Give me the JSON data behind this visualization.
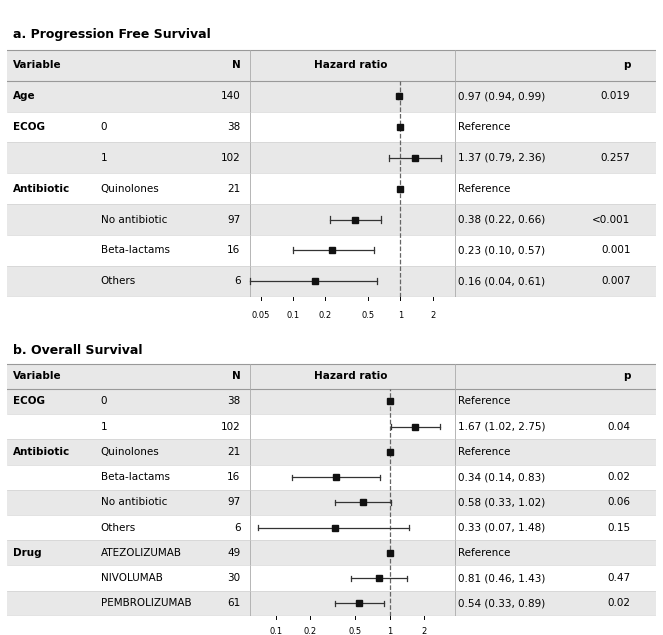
{
  "panel_a_title": "a. Progression Free Survival",
  "panel_b_title": "b. Overall Survival",
  "panel_a": {
    "header": [
      "Variable",
      "N",
      "Hazard ratio",
      "",
      "p"
    ],
    "rows": [
      {
        "var1": "Age",
        "var2": "",
        "n": "140",
        "hr": 0.97,
        "lo": 0.94,
        "hi": 0.99,
        "ci_text": "0.97 (0.94, 0.99)",
        "p_text": "0.019",
        "reference": false,
        "shade": true
      },
      {
        "var1": "ECOG",
        "var2": "0",
        "n": "38",
        "hr": 1.0,
        "lo": null,
        "hi": null,
        "ci_text": "Reference",
        "p_text": "",
        "reference": true,
        "shade": false
      },
      {
        "var1": "",
        "var2": "1",
        "n": "102",
        "hr": 1.37,
        "lo": 0.79,
        "hi": 2.36,
        "ci_text": "1.37 (0.79, 2.36)",
        "p_text": "0.257",
        "reference": false,
        "shade": true
      },
      {
        "var1": "Antibiotic",
        "var2": "Quinolones",
        "n": "21",
        "hr": 1.0,
        "lo": null,
        "hi": null,
        "ci_text": "Reference",
        "p_text": "",
        "reference": true,
        "shade": false
      },
      {
        "var1": "",
        "var2": "No antibiotic",
        "n": "97",
        "hr": 0.38,
        "lo": 0.22,
        "hi": 0.66,
        "ci_text": "0.38 (0.22, 0.66)",
        "p_text": "<0.001",
        "reference": false,
        "shade": true
      },
      {
        "var1": "",
        "var2": "Beta-lactams",
        "n": "16",
        "hr": 0.23,
        "lo": 0.1,
        "hi": 0.57,
        "ci_text": "0.23 (0.10, 0.57)",
        "p_text": "0.001",
        "reference": false,
        "shade": false
      },
      {
        "var1": "",
        "var2": "Others",
        "n": "6",
        "hr": 0.16,
        "lo": 0.04,
        "hi": 0.61,
        "ci_text": "0.16 (0.04, 0.61)",
        "p_text": "0.007",
        "reference": false,
        "shade": true
      }
    ],
    "xmin": 0.04,
    "xmax": 3.0,
    "xticks": [
      0.05,
      0.1,
      0.2,
      0.5,
      1,
      2
    ],
    "xticklabels": [
      "0.05",
      "0.1",
      "0.2",
      "0.5",
      "1",
      "2"
    ],
    "ref_line": 1.0
  },
  "panel_b": {
    "header": [
      "Variable",
      "N",
      "Hazard ratio",
      "",
      "p"
    ],
    "rows": [
      {
        "var1": "ECOG",
        "var2": "0",
        "n": "38",
        "hr": 1.0,
        "lo": null,
        "hi": null,
        "ci_text": "Reference",
        "p_text": "",
        "reference": true,
        "shade": true
      },
      {
        "var1": "",
        "var2": "1",
        "n": "102",
        "hr": 1.67,
        "lo": 1.02,
        "hi": 2.75,
        "ci_text": "1.67 (1.02, 2.75)",
        "p_text": "0.04",
        "reference": false,
        "shade": false
      },
      {
        "var1": "Antibiotic",
        "var2": "Quinolones",
        "n": "21",
        "hr": 1.0,
        "lo": null,
        "hi": null,
        "ci_text": "Reference",
        "p_text": "",
        "reference": true,
        "shade": true
      },
      {
        "var1": "",
        "var2": "Beta-lactams",
        "n": "16",
        "hr": 0.34,
        "lo": 0.14,
        "hi": 0.83,
        "ci_text": "0.34 (0.14, 0.83)",
        "p_text": "0.02",
        "reference": false,
        "shade": false
      },
      {
        "var1": "",
        "var2": "No antibiotic",
        "n": "97",
        "hr": 0.58,
        "lo": 0.33,
        "hi": 1.02,
        "ci_text": "0.58 (0.33, 1.02)",
        "p_text": "0.06",
        "reference": false,
        "shade": true
      },
      {
        "var1": "",
        "var2": "Others",
        "n": "6",
        "hr": 0.33,
        "lo": 0.07,
        "hi": 1.48,
        "ci_text": "0.33 (0.07, 1.48)",
        "p_text": "0.15",
        "reference": false,
        "shade": false
      },
      {
        "var1": "Drug",
        "var2": "ATEZOLIZUMAB",
        "n": "49",
        "hr": 1.0,
        "lo": null,
        "hi": null,
        "ci_text": "Reference",
        "p_text": "",
        "reference": true,
        "shade": true
      },
      {
        "var1": "",
        "var2": "NIVOLUMAB",
        "n": "30",
        "hr": 0.81,
        "lo": 0.46,
        "hi": 1.43,
        "ci_text": "0.81 (0.46, 1.43)",
        "p_text": "0.47",
        "reference": false,
        "shade": false
      },
      {
        "var1": "",
        "var2": "PEMBROLIZUMAB",
        "n": "61",
        "hr": 0.54,
        "lo": 0.33,
        "hi": 0.89,
        "ci_text": "0.54 (0.33, 0.89)",
        "p_text": "0.02",
        "reference": false,
        "shade": true
      }
    ],
    "xmin": 0.06,
    "xmax": 3.5,
    "xticks": [
      0.1,
      0.2,
      0.5,
      1,
      2
    ],
    "xticklabels": [
      "0.1",
      "0.2",
      "0.5",
      "1",
      "2"
    ],
    "ref_line": 1.0
  },
  "shade_color": "#e8e8e8",
  "header_shade": "#d0d0d0",
  "border_color": "#888888",
  "text_color": "#000000",
  "marker_color": "#111111",
  "line_color": "#555555"
}
